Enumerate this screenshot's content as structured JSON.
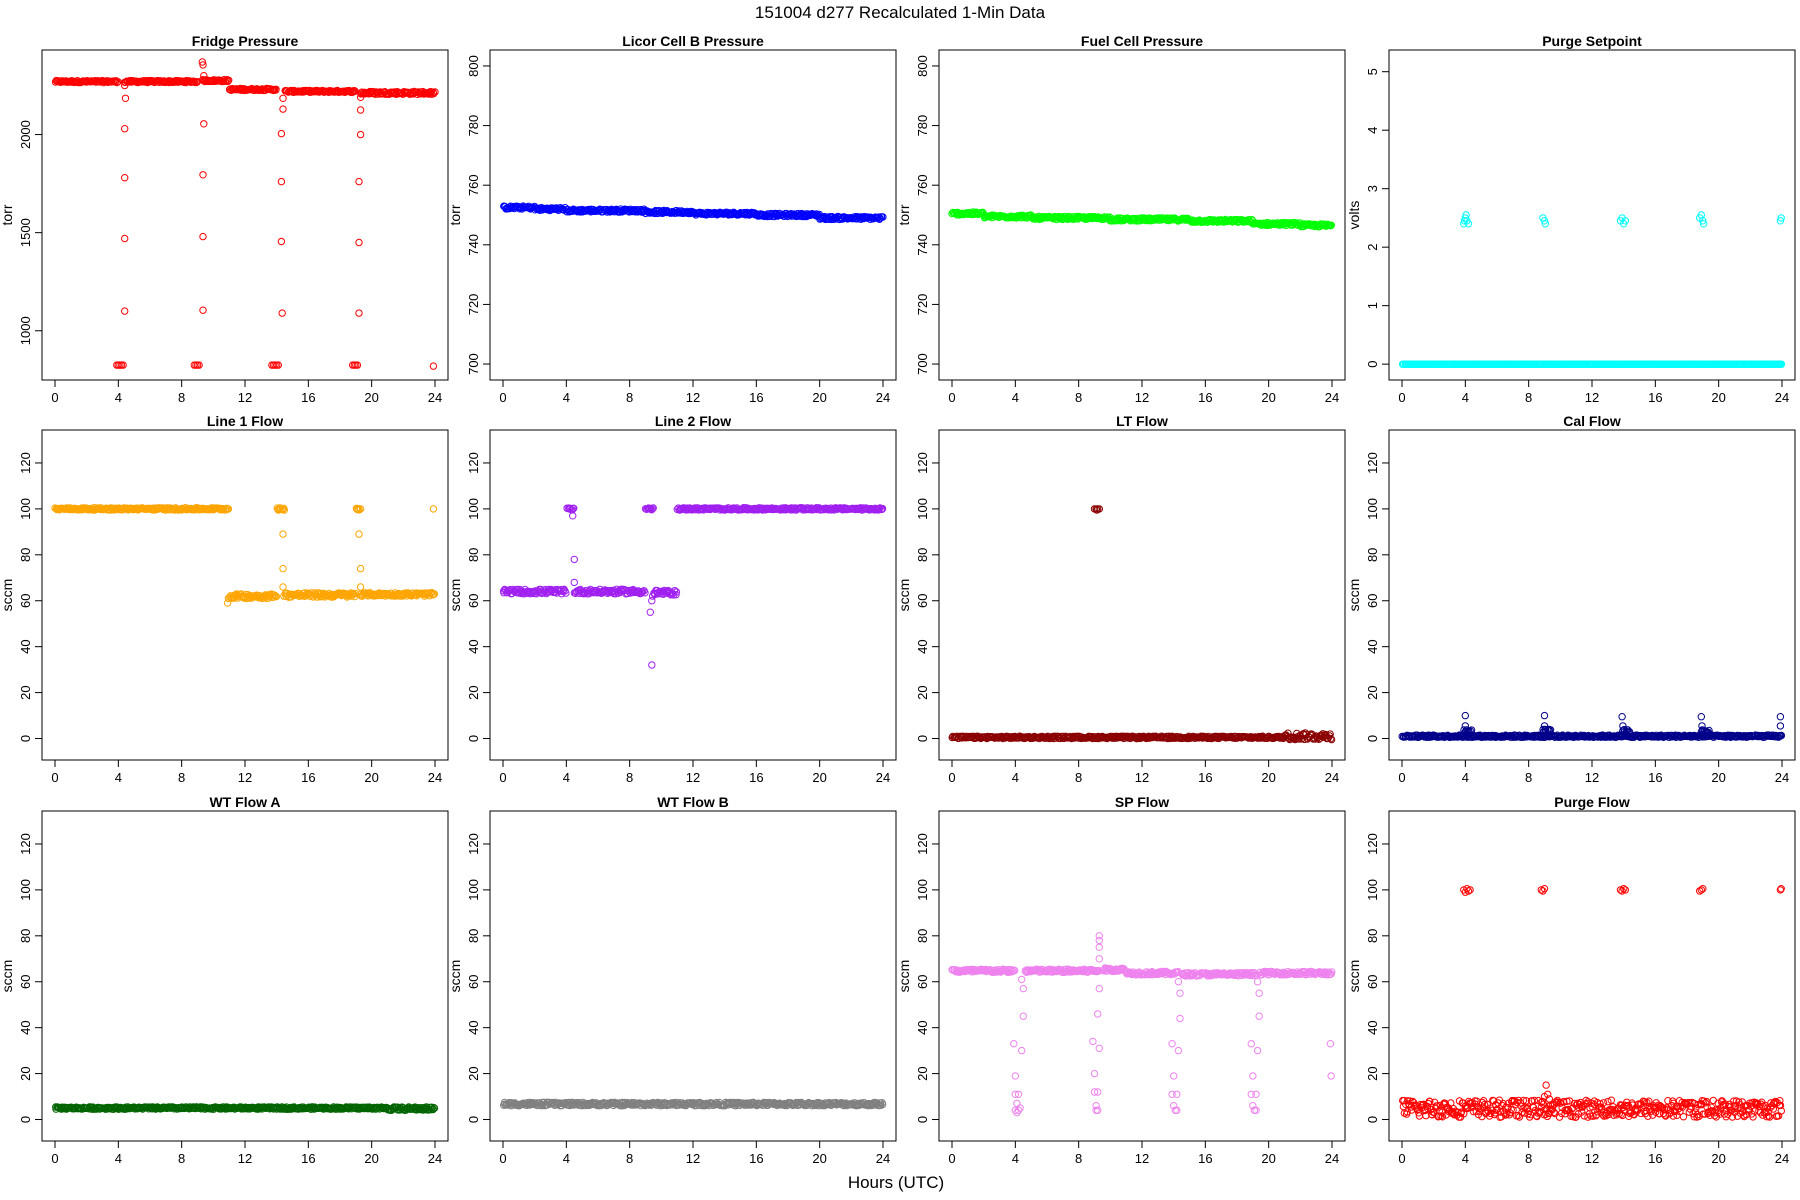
{
  "figure": {
    "suptitle": "151004   d277   Recalculated 1-Min Data",
    "xlabel": "Hours (UTC)"
  },
  "chart_data": [
    {
      "type": "scatter",
      "title": "Fridge Pressure",
      "ylabel": "torr",
      "color": "#ff0000",
      "xlim": [
        0,
        24
      ],
      "ylim": [
        800,
        2380
      ],
      "yticks": [
        1000,
        1500,
        2000
      ],
      "xticks": [
        0,
        4,
        8,
        12,
        16,
        20,
        24
      ],
      "segments": [
        [
          0,
          4,
          2265,
          2275
        ],
        [
          4.4,
          9.0,
          2265,
          2275
        ],
        [
          9.3,
          11.0,
          2270,
          2280
        ],
        [
          11.0,
          14.0,
          2225,
          2235
        ],
        [
          14.5,
          19.0,
          2215,
          2225
        ],
        [
          19.3,
          24,
          2205,
          2220
        ]
      ],
      "points": [
        [
          3.9,
          825
        ],
        [
          4.0,
          825
        ],
        [
          4.1,
          825
        ],
        [
          4.2,
          825
        ],
        [
          4.3,
          825
        ],
        [
          4.4,
          2250
        ],
        [
          4.45,
          2185
        ],
        [
          4.4,
          2030
        ],
        [
          4.4,
          1780
        ],
        [
          4.4,
          1470
        ],
        [
          4.4,
          1100
        ],
        [
          8.8,
          825
        ],
        [
          8.9,
          825
        ],
        [
          9.0,
          825
        ],
        [
          9.1,
          825
        ],
        [
          9.3,
          2370
        ],
        [
          9.35,
          2355
        ],
        [
          9.4,
          2300
        ],
        [
          9.4,
          2055
        ],
        [
          9.35,
          1795
        ],
        [
          9.35,
          1480
        ],
        [
          9.35,
          1105
        ],
        [
          13.7,
          825
        ],
        [
          13.8,
          825
        ],
        [
          13.9,
          825
        ],
        [
          14.0,
          825
        ],
        [
          14.1,
          825
        ],
        [
          14.4,
          2185
        ],
        [
          14.4,
          2130
        ],
        [
          14.3,
          2005
        ],
        [
          14.3,
          1760
        ],
        [
          14.3,
          1455
        ],
        [
          14.35,
          1090
        ],
        [
          18.8,
          825
        ],
        [
          18.9,
          825
        ],
        [
          19.0,
          825
        ],
        [
          19.1,
          825
        ],
        [
          19.3,
          2190
        ],
        [
          19.3,
          2125
        ],
        [
          19.3,
          2000
        ],
        [
          19.2,
          1760
        ],
        [
          19.2,
          1450
        ],
        [
          19.2,
          1090
        ],
        [
          23.9,
          820
        ]
      ]
    },
    {
      "type": "scatter",
      "title": "Licor Cell B Pressure",
      "ylabel": "torr",
      "color": "#0000ff",
      "xlim": [
        0,
        24
      ],
      "ylim": [
        698,
        802
      ],
      "yticks": [
        700,
        720,
        740,
        760,
        780,
        800
      ],
      "xticks": [
        0,
        4,
        8,
        12,
        16,
        20,
        24
      ],
      "segments": [
        [
          0,
          2,
          752,
          753
        ],
        [
          2,
          4,
          751.5,
          752.5
        ],
        [
          4,
          9,
          751,
          752
        ],
        [
          9,
          12,
          750.5,
          751.5
        ],
        [
          12,
          16,
          750,
          751
        ],
        [
          16,
          20,
          749.5,
          750.5
        ],
        [
          20,
          24,
          748.5,
          749.5
        ]
      ],
      "points": []
    },
    {
      "type": "scatter",
      "title": "Fuel Cell Pressure",
      "ylabel": "torr",
      "color": "#00ff00",
      "xlim": [
        0,
        24
      ],
      "ylim": [
        698,
        802
      ],
      "yticks": [
        700,
        720,
        740,
        760,
        780,
        800
      ],
      "xticks": [
        0,
        4,
        8,
        12,
        16,
        20,
        24
      ],
      "segments": [
        [
          0,
          2,
          750,
          751
        ],
        [
          2,
          5,
          749,
          750
        ],
        [
          5,
          10,
          748.5,
          749.5
        ],
        [
          10,
          15,
          748,
          749
        ],
        [
          15,
          19,
          747.5,
          748.5
        ],
        [
          19,
          22,
          746.5,
          747.5
        ],
        [
          22,
          24,
          746,
          747
        ]
      ],
      "points": []
    },
    {
      "type": "scatter",
      "title": "Purge Setpoint",
      "ylabel": "volts",
      "color": "#00ffff",
      "xlim": [
        0,
        24
      ],
      "ylim": [
        -0.1,
        5.2
      ],
      "yticks": [
        0,
        1,
        2,
        3,
        4,
        5
      ],
      "xticks": [
        0,
        4,
        8,
        12,
        16,
        20,
        24
      ],
      "segments": [
        [
          0,
          24,
          0,
          0
        ]
      ],
      "points": [
        [
          3.9,
          2.4
        ],
        [
          4.0,
          2.5
        ],
        [
          4.1,
          2.45
        ],
        [
          4.2,
          2.4
        ],
        [
          3.95,
          2.45
        ],
        [
          4.05,
          2.55
        ],
        [
          8.9,
          2.5
        ],
        [
          9.0,
          2.45
        ],
        [
          9.05,
          2.4
        ],
        [
          13.8,
          2.45
        ],
        [
          13.9,
          2.5
        ],
        [
          14.0,
          2.4
        ],
        [
          14.1,
          2.45
        ],
        [
          18.8,
          2.5
        ],
        [
          18.9,
          2.55
        ],
        [
          19.0,
          2.45
        ],
        [
          19.05,
          2.4
        ],
        [
          23.9,
          2.45
        ],
        [
          23.95,
          2.5
        ]
      ]
    },
    {
      "type": "scatter",
      "title": "Line 1 Flow",
      "ylabel": "sccm",
      "color": "#ffa500",
      "xlim": [
        0,
        24
      ],
      "ylim": [
        -5,
        130
      ],
      "yticks": [
        0,
        20,
        40,
        60,
        80,
        100,
        120
      ],
      "xticks": [
        0,
        4,
        8,
        12,
        16,
        20,
        24
      ],
      "segments": [
        [
          0,
          11,
          99.5,
          100.5
        ],
        [
          11,
          14,
          61,
          63
        ],
        [
          14,
          14.5,
          99.5,
          100.5
        ],
        [
          14.5,
          19,
          61.5,
          63.5
        ],
        [
          19,
          19.3,
          99.5,
          100.5
        ],
        [
          19.3,
          24,
          62,
          63.5
        ]
      ],
      "points": [
        [
          10.9,
          59
        ],
        [
          10.95,
          61
        ],
        [
          14.4,
          89
        ],
        [
          14.4,
          74
        ],
        [
          14.4,
          66
        ],
        [
          14.45,
          62
        ],
        [
          19.2,
          89
        ],
        [
          19.3,
          74
        ],
        [
          19.3,
          66
        ],
        [
          19.35,
          62
        ],
        [
          23.9,
          100
        ]
      ]
    },
    {
      "type": "scatter",
      "title": "Line 2 Flow",
      "ylabel": "sccm",
      "color": "#a020f0",
      "xlim": [
        0,
        24
      ],
      "ylim": [
        -5,
        130
      ],
      "yticks": [
        0,
        20,
        40,
        60,
        80,
        100,
        120
      ],
      "xticks": [
        0,
        4,
        8,
        12,
        16,
        20,
        24
      ],
      "segments": [
        [
          0,
          4,
          63,
          65
        ],
        [
          4.0,
          4.5,
          99.5,
          100.5
        ],
        [
          4.5,
          9.0,
          63,
          65
        ],
        [
          9.0,
          9.5,
          99.5,
          100.5
        ],
        [
          9.5,
          11,
          62.5,
          64.5
        ],
        [
          11,
          24,
          99.5,
          100.5
        ]
      ],
      "points": [
        [
          4.4,
          97
        ],
        [
          4.5,
          78
        ],
        [
          4.5,
          68
        ],
        [
          9.3,
          55
        ],
        [
          9.4,
          60
        ],
        [
          9.4,
          32
        ],
        [
          9.45,
          62
        ]
      ]
    },
    {
      "type": "scatter",
      "title": "LT Flow",
      "ylabel": "sccm",
      "color": "#8b0000",
      "xlim": [
        0,
        24
      ],
      "ylim": [
        -5,
        130
      ],
      "yticks": [
        0,
        20,
        40,
        60,
        80,
        100,
        120
      ],
      "xticks": [
        0,
        4,
        8,
        12,
        16,
        20,
        24
      ],
      "segments": [
        [
          0,
          21,
          0,
          1
        ],
        [
          21,
          24,
          -0.5,
          2.5
        ]
      ],
      "points": [
        [
          9.0,
          100
        ],
        [
          9.1,
          100
        ],
        [
          9.2,
          100
        ],
        [
          9.3,
          100
        ],
        [
          9.15,
          99.5
        ]
      ]
    },
    {
      "type": "scatter",
      "title": "Cal Flow",
      "ylabel": "sccm",
      "color": "#00008b",
      "xlim": [
        0,
        24
      ],
      "ylim": [
        -5,
        130
      ],
      "yticks": [
        0,
        20,
        40,
        60,
        80,
        100,
        120
      ],
      "xticks": [
        0,
        4,
        8,
        12,
        16,
        20,
        24
      ],
      "segments": [
        [
          0,
          24,
          0.5,
          1.5
        ],
        [
          3.9,
          4.4,
          2.5,
          4
        ],
        [
          8.9,
          9.4,
          2.5,
          4
        ],
        [
          13.9,
          14.4,
          2.5,
          4
        ],
        [
          18.9,
          19.4,
          2.5,
          4
        ]
      ],
      "points": [
        [
          4.0,
          10
        ],
        [
          4.0,
          5.5
        ],
        [
          9.0,
          10
        ],
        [
          9.0,
          5.5
        ],
        [
          13.9,
          9.5
        ],
        [
          13.95,
          5.5
        ],
        [
          18.9,
          9.5
        ],
        [
          18.95,
          5.5
        ],
        [
          23.9,
          9.5
        ],
        [
          23.9,
          5.5
        ]
      ]
    },
    {
      "type": "scatter",
      "title": "WT Flow A",
      "ylabel": "sccm",
      "color": "#006400",
      "xlim": [
        0,
        24
      ],
      "ylim": [
        -5,
        130
      ],
      "yticks": [
        0,
        20,
        40,
        60,
        80,
        100,
        120
      ],
      "xticks": [
        0,
        4,
        8,
        12,
        16,
        20,
        24
      ],
      "segments": [
        [
          0,
          21,
          4.5,
          5.5
        ],
        [
          21,
          24,
          4,
          5.5
        ]
      ],
      "points": []
    },
    {
      "type": "scatter",
      "title": "WT Flow B",
      "ylabel": "sccm",
      "color": "#808080",
      "xlim": [
        0,
        24
      ],
      "ylim": [
        -5,
        130
      ],
      "yticks": [
        0,
        20,
        40,
        60,
        80,
        100,
        120
      ],
      "xticks": [
        0,
        4,
        8,
        12,
        16,
        20,
        24
      ],
      "segments": [
        [
          0,
          24,
          6,
          7.5
        ]
      ],
      "points": []
    },
    {
      "type": "scatter",
      "title": "SP Flow",
      "ylabel": "sccm",
      "color": "#ee82ee",
      "xlim": [
        0,
        24
      ],
      "ylim": [
        -5,
        130
      ],
      "yticks": [
        0,
        20,
        40,
        60,
        80,
        100,
        120
      ],
      "xticks": [
        0,
        4,
        8,
        12,
        16,
        20,
        24
      ],
      "segments": [
        [
          0,
          4,
          64,
          65.5
        ],
        [
          4.6,
          9.3,
          64,
          65.5
        ],
        [
          9.5,
          11,
          64.5,
          66
        ],
        [
          11,
          14.3,
          63,
          64.5
        ],
        [
          14.5,
          19.2,
          62.5,
          64
        ],
        [
          19.4,
          24,
          63,
          64.5
        ]
      ],
      "points": [
        [
          3.9,
          33
        ],
        [
          4.0,
          19
        ],
        [
          4.0,
          11
        ],
        [
          4.1,
          7
        ],
        [
          4.0,
          4
        ],
        [
          4.1,
          3
        ],
        [
          4.2,
          4
        ],
        [
          4.2,
          11
        ],
        [
          4.3,
          5
        ],
        [
          4.4,
          61
        ],
        [
          4.5,
          57
        ],
        [
          4.5,
          45
        ],
        [
          4.4,
          30
        ],
        [
          8.9,
          34
        ],
        [
          9.0,
          20
        ],
        [
          9.0,
          12
        ],
        [
          9.1,
          6
        ],
        [
          9.2,
          4
        ],
        [
          9.1,
          4
        ],
        [
          9.3,
          80
        ],
        [
          9.3,
          78
        ],
        [
          9.3,
          75
        ],
        [
          9.3,
          70
        ],
        [
          9.3,
          57
        ],
        [
          9.2,
          46
        ],
        [
          9.3,
          31
        ],
        [
          9.2,
          12
        ],
        [
          13.9,
          33
        ],
        [
          14.0,
          19
        ],
        [
          13.9,
          11
        ],
        [
          14.0,
          6
        ],
        [
          14.1,
          4
        ],
        [
          14.2,
          4
        ],
        [
          14.3,
          60
        ],
        [
          14.4,
          55
        ],
        [
          14.4,
          44
        ],
        [
          14.3,
          30
        ],
        [
          14.2,
          11
        ],
        [
          18.9,
          33
        ],
        [
          19.0,
          19
        ],
        [
          18.9,
          11
        ],
        [
          19.0,
          6
        ],
        [
          19.1,
          4
        ],
        [
          19.2,
          4
        ],
        [
          19.3,
          60
        ],
        [
          19.4,
          55
        ],
        [
          19.4,
          45
        ],
        [
          19.3,
          30
        ],
        [
          19.2,
          11
        ],
        [
          23.9,
          33
        ],
        [
          23.95,
          19
        ]
      ]
    },
    {
      "type": "scatter",
      "title": "Purge Flow",
      "ylabel": "sccm",
      "color": "#ff0000",
      "xlim": [
        0,
        24
      ],
      "ylim": [
        -5,
        130
      ],
      "yticks": [
        0,
        20,
        40,
        60,
        80,
        100,
        120
      ],
      "xticks": [
        0,
        4,
        8,
        12,
        16,
        20,
        24
      ],
      "segments": [
        [
          0,
          24,
          1,
          8.5
        ]
      ],
      "points": [
        [
          3.9,
          100
        ],
        [
          4.0,
          99
        ],
        [
          4.1,
          100.5
        ],
        [
          4.2,
          99.5
        ],
        [
          4.3,
          100
        ],
        [
          8.8,
          100
        ],
        [
          8.9,
          99.5
        ],
        [
          9.0,
          100.5
        ],
        [
          13.8,
          100
        ],
        [
          13.9,
          99.5
        ],
        [
          14.0,
          100.5
        ],
        [
          14.1,
          100
        ],
        [
          18.8,
          99.5
        ],
        [
          18.9,
          100
        ],
        [
          19.0,
          100.5
        ],
        [
          23.9,
          100
        ],
        [
          23.95,
          100.5
        ],
        [
          9.0,
          10
        ],
        [
          9.1,
          15
        ],
        [
          9.2,
          11
        ],
        [
          9.3,
          9
        ]
      ]
    }
  ]
}
